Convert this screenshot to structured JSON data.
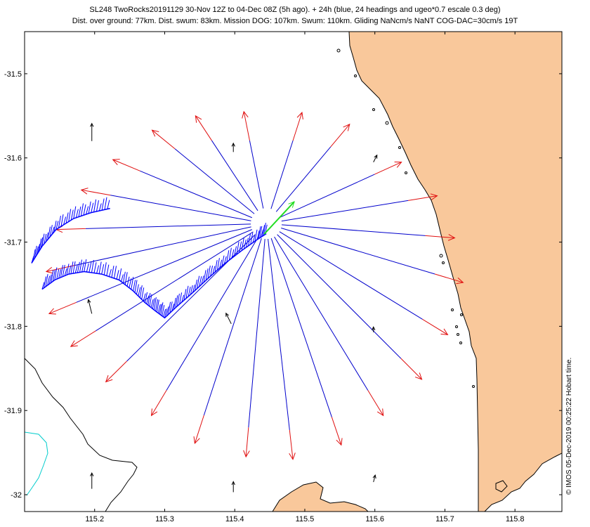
{
  "chart_data": {
    "type": "map",
    "title": "SL248 TwoRocks20191129 30-Nov 12Z to 04-Dec 08Z (5h ago). + 24h (blue, 24 headings and ugeo*0.7 escale 0.3 deg)",
    "subtitle": "Dist. over ground: 77km. Dist. swum: 83km. Mission DOG: 107km. Swum: 110km. Gliding NaNcm/s NaNT COG-DAC=30cm/s 19T",
    "credit": "© IMOS 05-Dec-2019 00:25:22 Hobart time.",
    "xlim": [
      115.1,
      115.867
    ],
    "ylim": [
      -32.02,
      -31.45
    ],
    "x_ticks": [
      "115.2",
      "115.3",
      "115.4",
      "115.5",
      "115.6",
      "115.7",
      "115.8"
    ],
    "x_tick_values": [
      115.2,
      115.3,
      115.4,
      115.5,
      115.6,
      115.7,
      115.8
    ],
    "y_ticks": [
      "-31.5",
      "-31.6",
      "-31.7",
      "-31.8",
      "-31.9",
      "-32"
    ],
    "y_tick_values": [
      -31.5,
      -31.6,
      -31.7,
      -31.8,
      -31.9,
      -32.0
    ],
    "colors": {
      "land": "#F9C89B",
      "track": "#0000FF",
      "heading_lines": "#0000CC",
      "heading_arrows": "#E01010",
      "current_heading": "#22DD22",
      "isobath_black": "#000000",
      "isobath_cyan": "#00CCCC",
      "currents": "#000000"
    },
    "glider_position": {
      "lon": 115.445,
      "lat": -31.678
    },
    "current_heading_tip": {
      "lon": 115.485,
      "lat": -31.652
    },
    "heading_endpoints": [
      {
        "lon": 115.413,
        "lat": -31.545
      },
      {
        "lon": 115.496,
        "lat": -31.546
      },
      {
        "lon": 115.564,
        "lat": -31.56
      },
      {
        "lon": 115.638,
        "lat": -31.605
      },
      {
        "lon": 115.689,
        "lat": -31.645
      },
      {
        "lon": 115.714,
        "lat": -31.695
      },
      {
        "lon": 115.726,
        "lat": -31.748
      },
      {
        "lon": 115.704,
        "lat": -31.81
      },
      {
        "lon": 115.667,
        "lat": -31.863
      },
      {
        "lon": 115.612,
        "lat": -31.906
      },
      {
        "lon": 115.552,
        "lat": -31.941
      },
      {
        "lon": 115.483,
        "lat": -31.958
      },
      {
        "lon": 115.416,
        "lat": -31.955
      },
      {
        "lon": 115.343,
        "lat": -31.939
      },
      {
        "lon": 115.281,
        "lat": -31.906
      },
      {
        "lon": 115.216,
        "lat": -31.866
      },
      {
        "lon": 115.166,
        "lat": -31.824
      },
      {
        "lon": 115.135,
        "lat": -31.785
      },
      {
        "lon": 115.131,
        "lat": -31.735
      },
      {
        "lon": 115.145,
        "lat": -31.685
      },
      {
        "lon": 115.181,
        "lat": -31.638
      },
      {
        "lon": 115.226,
        "lat": -31.602
      },
      {
        "lon": 115.282,
        "lat": -31.567
      },
      {
        "lon": 115.344,
        "lat": -31.55
      }
    ],
    "track": [
      {
        "lon": 115.125,
        "lat": -31.756
      },
      {
        "lon": 115.143,
        "lat": -31.745
      },
      {
        "lon": 115.163,
        "lat": -31.738
      },
      {
        "lon": 115.185,
        "lat": -31.735
      },
      {
        "lon": 115.21,
        "lat": -31.738
      },
      {
        "lon": 115.235,
        "lat": -31.745
      },
      {
        "lon": 115.255,
        "lat": -31.758
      },
      {
        "lon": 115.272,
        "lat": -31.772
      },
      {
        "lon": 115.287,
        "lat": -31.782
      },
      {
        "lon": 115.3,
        "lat": -31.79
      },
      {
        "lon": 115.318,
        "lat": -31.776
      },
      {
        "lon": 115.34,
        "lat": -31.76
      },
      {
        "lon": 115.362,
        "lat": -31.743
      },
      {
        "lon": 115.385,
        "lat": -31.726
      },
      {
        "lon": 115.41,
        "lat": -31.71
      },
      {
        "lon": 115.432,
        "lat": -31.697
      },
      {
        "lon": 115.445,
        "lat": -31.69
      }
    ],
    "track_west_segment": [
      {
        "lon": 115.11,
        "lat": -31.725
      },
      {
        "lon": 115.125,
        "lat": -31.705
      },
      {
        "lon": 115.145,
        "lat": -31.685
      },
      {
        "lon": 115.17,
        "lat": -31.672
      },
      {
        "lon": 115.195,
        "lat": -31.665
      },
      {
        "lon": 115.222,
        "lat": -31.66
      }
    ],
    "depth_averaged_currents": [
      {
        "lon": 115.196,
        "lat": -31.58,
        "u": 0.0,
        "v": 1.0
      },
      {
        "lon": 115.398,
        "lat": -31.593,
        "u": 0.0,
        "v": 0.5
      },
      {
        "lon": 115.598,
        "lat": -31.605,
        "u": 0.2,
        "v": 0.4
      },
      {
        "lon": 115.196,
        "lat": -31.785,
        "u": -0.2,
        "v": 0.8
      },
      {
        "lon": 115.395,
        "lat": -31.797,
        "u": -0.3,
        "v": 0.6
      },
      {
        "lon": 115.598,
        "lat": -31.807,
        "u": 0.0,
        "v": 0.3
      },
      {
        "lon": 115.196,
        "lat": -31.993,
        "u": 0.0,
        "v": 0.9
      },
      {
        "lon": 115.398,
        "lat": -31.997,
        "u": 0.0,
        "v": 0.6
      },
      {
        "lon": 115.598,
        "lat": -31.985,
        "u": 0.1,
        "v": 0.4
      }
    ]
  }
}
